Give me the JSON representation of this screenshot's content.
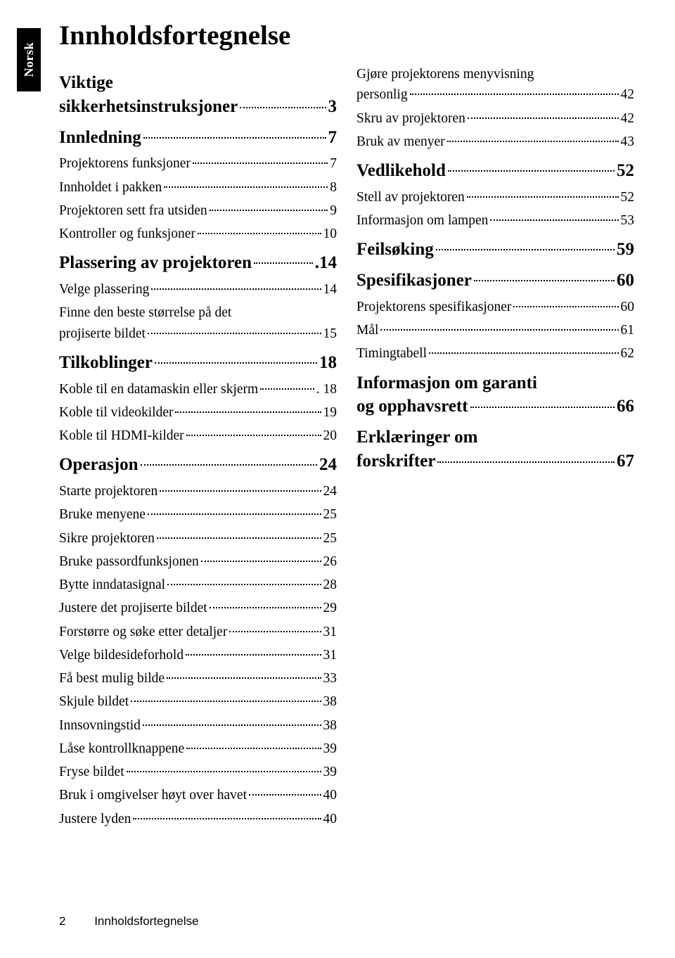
{
  "side_tab": "Norsk",
  "title": "Innholdsfortegnelse",
  "footer": {
    "page": "2",
    "title": "Innholdsfortegnelse"
  },
  "left": [
    {
      "type": "section-multi",
      "lines": [
        "Viktige",
        "sikkerhetsinstruksjoner"
      ],
      "page": "3"
    },
    {
      "type": "section",
      "label": "Innledning",
      "page": "7"
    },
    {
      "type": "entry",
      "label": "Projektorens funksjoner",
      "page": "7"
    },
    {
      "type": "entry",
      "label": "Innholdet i pakken",
      "page": "8"
    },
    {
      "type": "entry",
      "label": "Projektoren sett fra utsiden",
      "page": "9"
    },
    {
      "type": "entry",
      "label": "Kontroller og funksjoner",
      "page": "10"
    },
    {
      "type": "section",
      "label": "Plassering av projektoren",
      "page": ".14"
    },
    {
      "type": "entry",
      "label": "Velge plassering",
      "page": "14"
    },
    {
      "type": "entry-multi",
      "lines": [
        "Finne den beste størrelse på det",
        "projiserte bildet"
      ],
      "page": "15"
    },
    {
      "type": "section",
      "label": "Tilkoblinger",
      "page": "18"
    },
    {
      "type": "entry",
      "label": "Koble til en datamaskin eller skjerm",
      "page": ". 18"
    },
    {
      "type": "entry",
      "label": "Koble til videokilder",
      "page": "19"
    },
    {
      "type": "entry",
      "label": "Koble til HDMI-kilder",
      "page": "20"
    },
    {
      "type": "section",
      "label": "Operasjon",
      "page": "24"
    },
    {
      "type": "entry",
      "label": "Starte projektoren",
      "page": "24"
    },
    {
      "type": "entry",
      "label": "Bruke menyene",
      "page": "25"
    },
    {
      "type": "entry",
      "label": "Sikre projektoren",
      "page": "25"
    },
    {
      "type": "entry",
      "label": "Bruke passordfunksjonen",
      "page": "26"
    },
    {
      "type": "entry",
      "label": "Bytte inndatasignal",
      "page": "28"
    },
    {
      "type": "entry",
      "label": "Justere det projiserte bildet",
      "page": "29"
    },
    {
      "type": "entry",
      "label": "Forstørre og søke etter detaljer",
      "page": "31"
    },
    {
      "type": "entry",
      "label": "Velge bildesideforhold",
      "page": "31"
    },
    {
      "type": "entry",
      "label": "Få best mulig bilde",
      "page": "33"
    },
    {
      "type": "entry",
      "label": "Skjule bildet",
      "page": "38"
    },
    {
      "type": "entry",
      "label": "Innsovningstid",
      "page": "38"
    },
    {
      "type": "entry",
      "label": "Låse kontrollknappene",
      "page": "39"
    },
    {
      "type": "entry",
      "label": "Fryse bildet",
      "page": "39"
    },
    {
      "type": "entry",
      "label": "Bruk i omgivelser høyt over havet",
      "page": "40"
    },
    {
      "type": "entry",
      "label": "Justere lyden",
      "page": "40"
    }
  ],
  "right": [
    {
      "type": "entry-multi",
      "lines": [
        "Gjøre projektorens menyvisning",
        "personlig"
      ],
      "page": "42"
    },
    {
      "type": "entry",
      "label": "Skru av projektoren",
      "page": "42"
    },
    {
      "type": "entry",
      "label": "Bruk av menyer",
      "page": "43"
    },
    {
      "type": "section",
      "label": "Vedlikehold",
      "page": "52"
    },
    {
      "type": "entry",
      "label": "Stell av projektoren",
      "page": "52"
    },
    {
      "type": "entry",
      "label": "Informasjon om lampen",
      "page": "53"
    },
    {
      "type": "section",
      "label": "Feilsøking",
      "page": "59"
    },
    {
      "type": "section",
      "label": "Spesifikasjoner",
      "page": "60"
    },
    {
      "type": "entry",
      "label": "Projektorens spesifikasjoner",
      "page": "60"
    },
    {
      "type": "entry",
      "label": "Mål",
      "page": "61"
    },
    {
      "type": "entry",
      "label": "Timingtabell",
      "page": "62"
    },
    {
      "type": "section-multi",
      "lines": [
        "Informasjon om garanti",
        "og opphavsrett"
      ],
      "page": "66"
    },
    {
      "type": "section-multi",
      "lines": [
        "Erklæringer om",
        "forskrifter"
      ],
      "page": "67"
    }
  ]
}
